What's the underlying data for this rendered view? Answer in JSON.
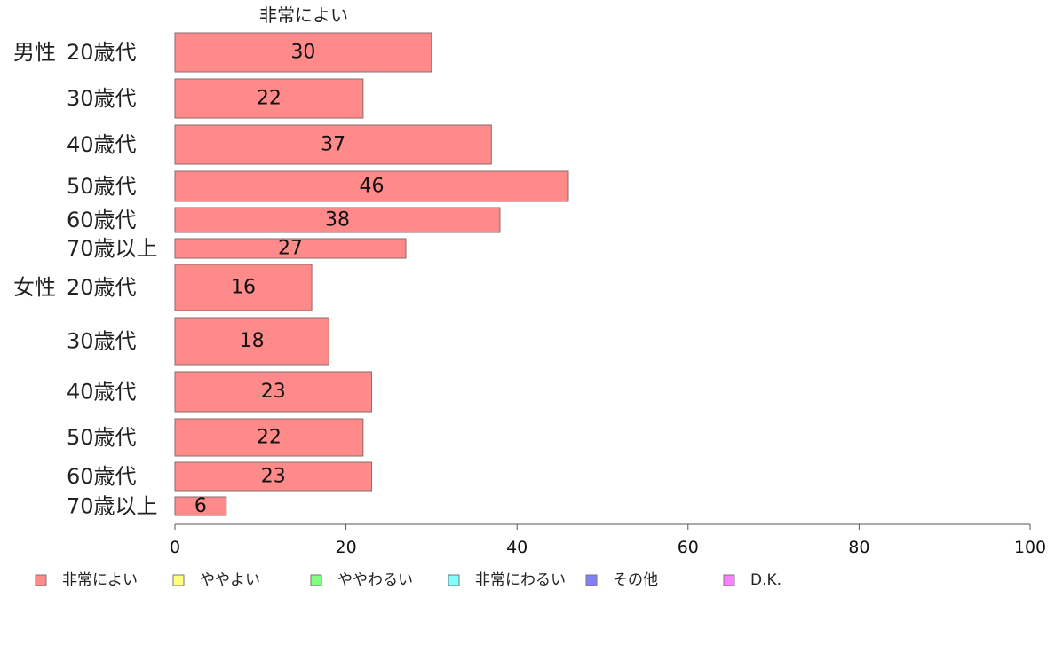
{
  "chart_data": {
    "type": "bar",
    "orientation": "horizontal",
    "series_header": "非常によい",
    "groups": [
      {
        "label": "男性",
        "categories": [
          "20歳代",
          "30歳代",
          "40歳代",
          "50歳代",
          "60歳代",
          "70歳以上"
        ],
        "values": [
          30,
          22,
          37,
          46,
          38,
          27
        ]
      },
      {
        "label": "女性",
        "categories": [
          "20歳代",
          "30歳代",
          "40歳代",
          "50歳代",
          "60歳代",
          "70歳以上"
        ],
        "values": [
          16,
          18,
          23,
          22,
          23,
          6
        ]
      }
    ],
    "xlim": [
      0,
      100
    ],
    "xticks": [
      0,
      20,
      40,
      60,
      80,
      100
    ],
    "grid": false,
    "legend_position": "bottom",
    "legend": [
      {
        "name": "非常によい",
        "color": "#ff8a8a"
      },
      {
        "name": "ややよい",
        "color": "#ffff80"
      },
      {
        "name": "ややわるい",
        "color": "#80ff80"
      },
      {
        "name": "非常にわるい",
        "color": "#80ffff"
      },
      {
        "name": "その他",
        "color": "#8080ff"
      },
      {
        "name": "D.K.",
        "color": "#ff80ff"
      }
    ],
    "bar_color": "#ff8a8a",
    "bar_border_color": "#8a6a6a"
  }
}
